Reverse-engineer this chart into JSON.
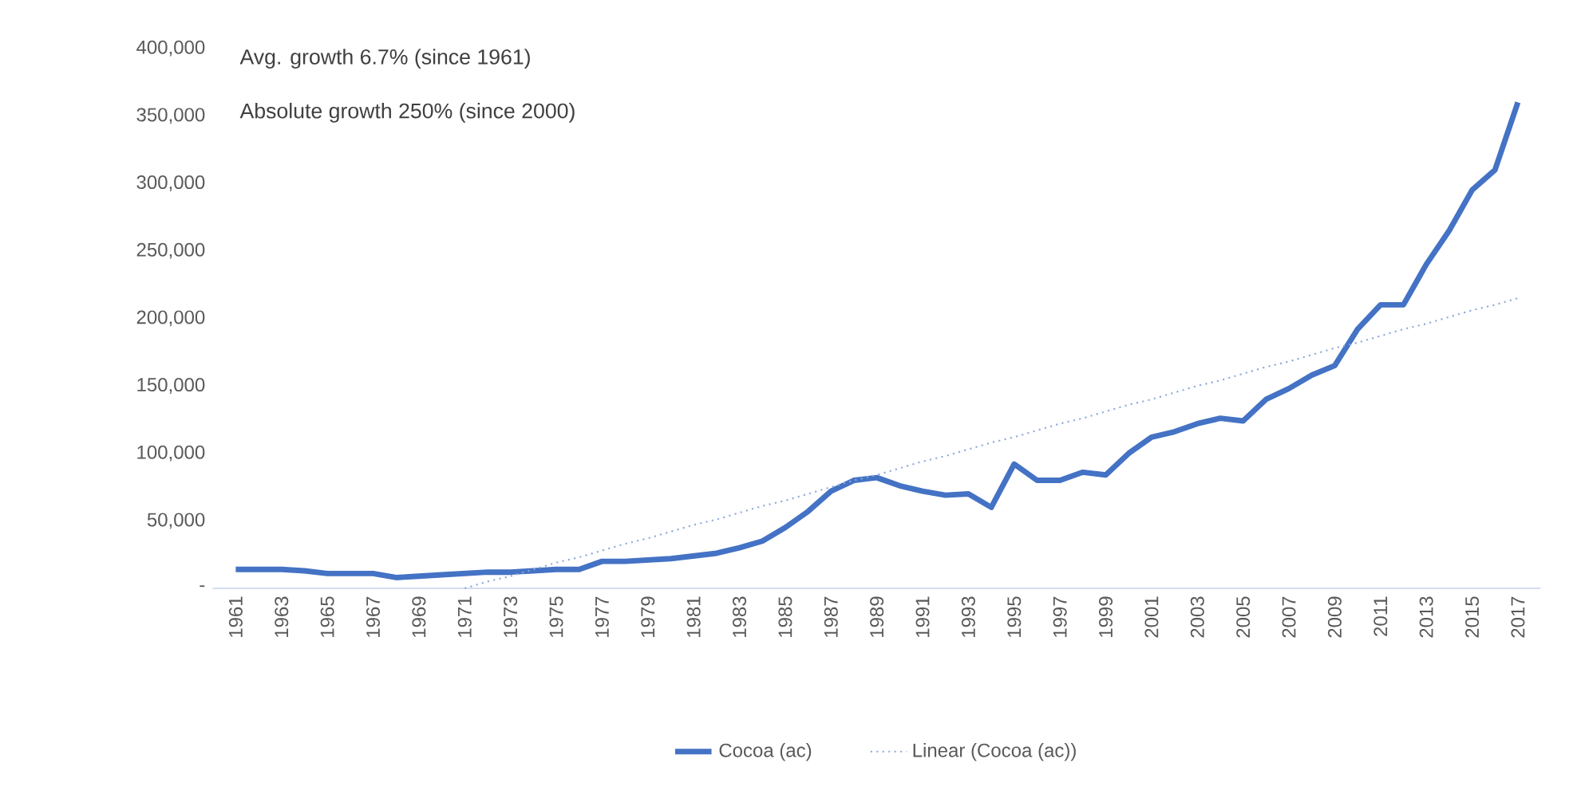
{
  "chart_data": {
    "type": "line",
    "categories": [
      "1961",
      null,
      "1963",
      null,
      "1965",
      null,
      "1967",
      null,
      "1969",
      null,
      "1971",
      null,
      "1973",
      null,
      "1975",
      null,
      "1977",
      null,
      "1979",
      null,
      "1981",
      null,
      "1983",
      null,
      "1985",
      null,
      "1987",
      null,
      "1989",
      null,
      "1991",
      null,
      "1993",
      null,
      "1995",
      null,
      "1997",
      null,
      "1999",
      null,
      "2001",
      null,
      "2003",
      null,
      "2005",
      null,
      "2007",
      null,
      "2009",
      null,
      "2011",
      null,
      "2013",
      null,
      "2015",
      null,
      "2017"
    ],
    "series": [
      {
        "name": "Cocoa (ac)",
        "line_style": "solid",
        "color": "#4472c4",
        "values": [
          14000,
          14000,
          14000,
          13000,
          11000,
          11000,
          11000,
          8000,
          9000,
          10000,
          11000,
          12000,
          12000,
          13000,
          14000,
          14000,
          20000,
          20000,
          21000,
          22000,
          24000,
          26000,
          30000,
          35000,
          45000,
          57000,
          72000,
          80000,
          82000,
          76000,
          72000,
          69000,
          70000,
          60000,
          92000,
          80000,
          80000,
          86000,
          84000,
          100000,
          112000,
          116000,
          122000,
          126000,
          124000,
          140000,
          148000,
          158000,
          165000,
          192000,
          210000,
          210000,
          240000,
          265000,
          295000,
          310000,
          360000
        ]
      },
      {
        "name": "Linear (Cocoa (ac))",
        "line_style": "dotted",
        "color": "#8faadc",
        "values": [
          null,
          null,
          null,
          null,
          null,
          null,
          null,
          null,
          null,
          null,
          0,
          5000,
          9000,
          14000,
          19000,
          23000,
          28000,
          33000,
          37000,
          42000,
          47000,
          51000,
          56000,
          61000,
          65000,
          70000,
          75000,
          80000,
          84000,
          89000,
          94000,
          98000,
          103000,
          108000,
          112000,
          117000,
          122000,
          126000,
          131000,
          136000,
          140000,
          145000,
          150000,
          154000,
          159000,
          164000,
          168000,
          173000,
          178000,
          182000,
          187000,
          192000,
          196000,
          201000,
          206000,
          210000,
          215000
        ]
      }
    ],
    "ylim": [
      0,
      400000
    ],
    "yticks": [
      {
        "value": 0,
        "label": "-"
      },
      {
        "value": 50000,
        "label": "50,000"
      },
      {
        "value": 100000,
        "label": "100,000"
      },
      {
        "value": 150000,
        "label": "150,000"
      },
      {
        "value": 200000,
        "label": "200,000"
      },
      {
        "value": 250000,
        "label": "250,000"
      },
      {
        "value": 300000,
        "label": "300,000"
      },
      {
        "value": 350000,
        "label": "350,000"
      },
      {
        "value": 400000,
        "label": "400,000"
      }
    ],
    "annotations": [
      "Avg. growth 6.7% (since 1961)",
      "Absolute growth 250% (since 2000)"
    ],
    "legend": "bottom"
  }
}
